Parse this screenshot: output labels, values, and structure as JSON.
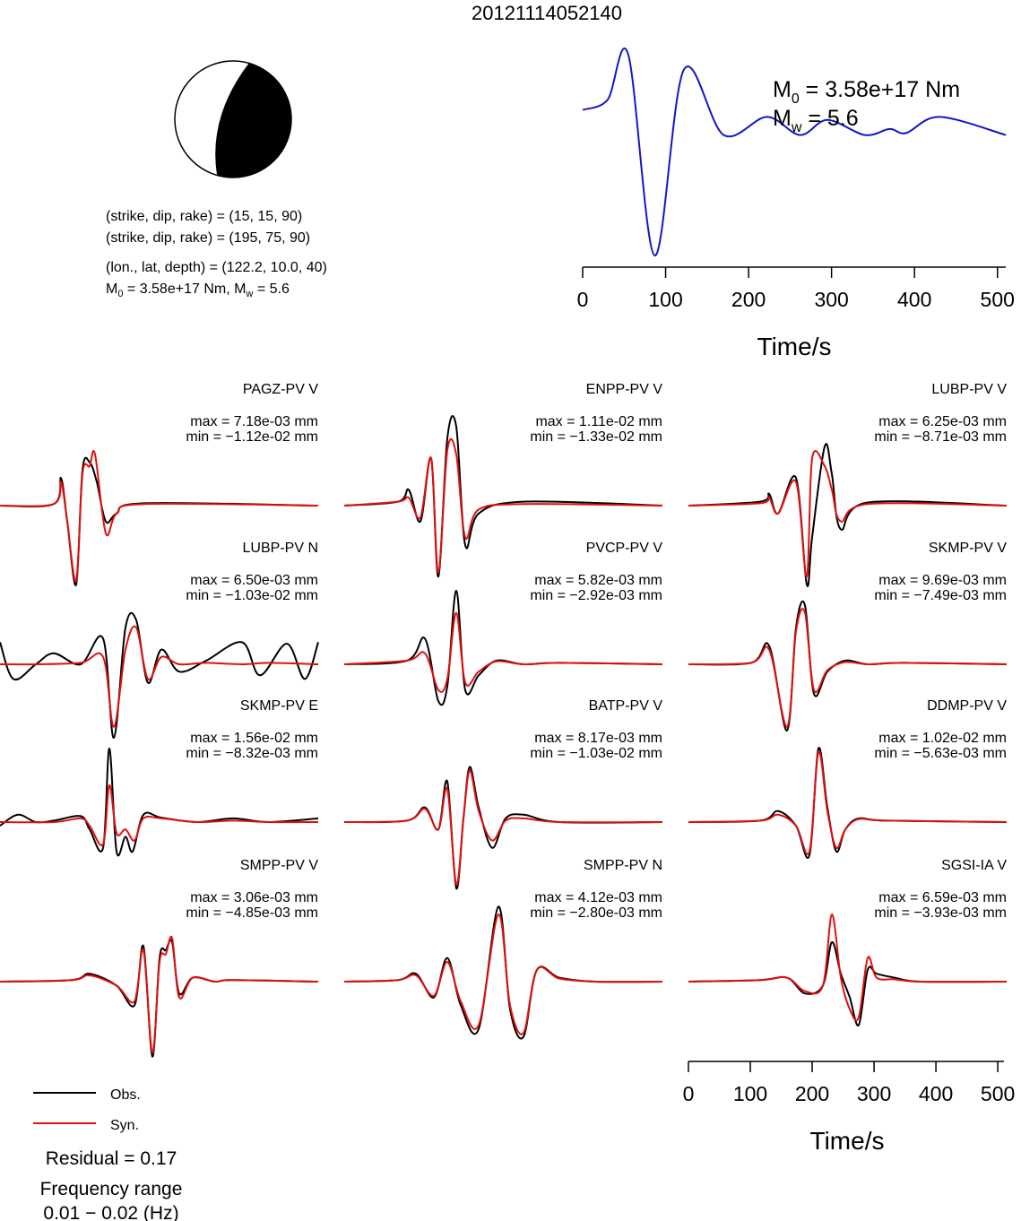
{
  "title": "20121114052140",
  "mechanism": {
    "nodal_plane_1": "(strike, dip, rake) = (15, 15, 90)",
    "nodal_plane_2": "(strike, dip, rake) = (195, 75, 90)",
    "location": "(lon., lat, depth) = (122.2, 10.0, 40)",
    "moment_line": {
      "m0_sym": "M",
      "m0_sub": "0",
      "m0_text": " = 3.58e+17 Nm, ",
      "mw_sym": "M",
      "mw_sub": "w",
      "mw_text": " = 5.6"
    }
  },
  "stf": {
    "m0": {
      "sym": "M",
      "sub": "0",
      "text": " = 3.58e+17 Nm"
    },
    "mw": {
      "sym": "M",
      "sub": "w",
      "text": " = 5.6"
    },
    "xlabel": "Time/s",
    "ticks": [
      "0",
      "100",
      "200",
      "300",
      "400",
      "500"
    ]
  },
  "bottom_axis": {
    "xlabel": "Time/s",
    "ticks": [
      "0",
      "100",
      "200",
      "300",
      "400",
      "500"
    ]
  },
  "legend": {
    "obs": "Obs.",
    "syn": "Syn.",
    "obs_color": "#000000",
    "syn_color": "#e01010"
  },
  "residual": "Residual = 0.17",
  "frequency_label": "Frequency range",
  "frequency_value": "0.01 − 0.02 (Hz)",
  "colors": {
    "stf": "#1515c8",
    "obs": "#000000",
    "syn": "#e01010"
  },
  "chart_data": {
    "type": "line",
    "stf": {
      "x_range": [
        0,
        510
      ],
      "x": [
        0,
        30,
        55,
        87,
        122,
        170,
        222,
        262,
        295,
        340,
        370,
        390,
        430,
        510
      ],
      "y": [
        0.45,
        0.55,
        1.0,
        -1.0,
        0.85,
        0.2,
        0.38,
        0.2,
        0.35,
        0.2,
        0.26,
        0.22,
        0.38,
        0.2
      ]
    },
    "stations": [
      {
        "name": "PAGZ-PV V",
        "max": "max = 7.18e-03 mm",
        "min": "min = −1.12e-02 mm"
      },
      {
        "name": "ENPP-PV V",
        "max": "max = 1.11e-02 mm",
        "min": "min = −1.33e-02 mm"
      },
      {
        "name": "LUBP-PV V",
        "max": "max = 6.25e-03 mm",
        "min": "min = −8.71e-03 mm"
      },
      {
        "name": "LUBP-PV N",
        "max": "max = 6.50e-03 mm",
        "min": "min = −1.03e-02 mm"
      },
      {
        "name": "PVCP-PV V",
        "max": "max = 5.82e-03 mm",
        "min": "min = −2.92e-03 mm"
      },
      {
        "name": "SKMP-PV V",
        "max": "max = 9.69e-03 mm",
        "min": "min = −7.49e-03 mm"
      },
      {
        "name": "SKMP-PV E",
        "max": "max = 1.56e-02 mm",
        "min": "min = −8.32e-03 mm"
      },
      {
        "name": "BATP-PV V",
        "max": "max = 8.17e-03 mm",
        "min": "min = −1.03e-02 mm"
      },
      {
        "name": "DDMP-PV V",
        "max": "max = 1.02e-02 mm",
        "min": "min = −5.63e-03 mm"
      },
      {
        "name": "SMPP-PV V",
        "max": "max = 3.06e-03 mm",
        "min": "min = −4.85e-03 mm"
      },
      {
        "name": "SMPP-PV N",
        "max": "max = 4.12e-03 mm",
        "min": "min = −2.80e-03 mm"
      },
      {
        "name": "SGSI-IA V",
        "max": "max = 6.59e-03 mm",
        "min": "min = −3.93e-03 mm"
      }
    ],
    "waveforms": [
      {
        "obs": {
          "x": [
            0,
            60,
            68,
            75,
            85,
            92,
            100,
            108,
            118,
            130,
            160,
            355
          ],
          "y": [
            0,
            0.02,
            0.35,
            -0.2,
            -1.0,
            0.45,
            0.55,
            0.3,
            -0.2,
            -0.1,
            0.03,
            0
          ]
        },
        "syn": {
          "x": [
            0,
            60,
            68,
            75,
            85,
            92,
            100,
            106,
            118,
            130,
            160,
            355
          ],
          "y": [
            0,
            0.02,
            0.3,
            -0.2,
            -0.95,
            0.4,
            0.5,
            0.65,
            -0.35,
            -0.1,
            0.02,
            0
          ]
        }
      },
      {
        "obs": {
          "x": [
            0,
            60,
            72,
            85,
            97,
            105,
            115,
            125,
            135,
            150,
            200,
            355
          ],
          "y": [
            0,
            0.05,
            0.2,
            -0.2,
            0.6,
            -0.9,
            0.85,
            1.0,
            -0.5,
            -0.1,
            0.05,
            0
          ]
        },
        "syn": {
          "x": [
            0,
            60,
            72,
            85,
            97,
            105,
            115,
            125,
            135,
            150,
            200,
            355
          ],
          "y": [
            0,
            0.05,
            0.1,
            -0.15,
            0.6,
            -0.85,
            0.7,
            0.65,
            -0.4,
            -0.05,
            0.02,
            0
          ]
        }
      },
      {
        "obs": {
          "x": [
            0,
            80,
            90,
            100,
            120,
            132,
            138,
            152,
            160,
            170,
            200,
            355
          ],
          "y": [
            0,
            0.05,
            0.15,
            -0.1,
            0.35,
            -1.0,
            -0.4,
            0.75,
            0.4,
            -0.3,
            0.04,
            0
          ]
        },
        "syn": {
          "x": [
            0,
            80,
            90,
            100,
            120,
            132,
            138,
            152,
            160,
            170,
            200,
            355
          ],
          "y": [
            0,
            0.03,
            0.1,
            -0.1,
            0.3,
            -0.9,
            0.6,
            0.5,
            0.2,
            -0.2,
            0.02,
            0
          ]
        }
      },
      {
        "obs": {
          "x": [
            0,
            15,
            40,
            60,
            90,
            115,
            127,
            140,
            152,
            165,
            180,
            200,
            230,
            270,
            290,
            320,
            340,
            355
          ],
          "y": [
            0.3,
            -0.2,
            0,
            0.15,
            0,
            0.35,
            -1.0,
            0.5,
            0.6,
            -0.25,
            0.2,
            -0.1,
            0.05,
            0.3,
            -0.15,
            0.28,
            -0.2,
            0.3
          ]
        },
        "syn": {
          "x": [
            0,
            40,
            90,
            115,
            127,
            140,
            152,
            165,
            180,
            200,
            230,
            270,
            300,
            355
          ],
          "y": [
            0,
            0,
            0.02,
            0.1,
            -0.85,
            0.2,
            0.5,
            -0.2,
            0.1,
            0,
            0.02,
            0,
            0.02,
            0
          ]
        }
      },
      {
        "obs": {
          "x": [
            0,
            70,
            90,
            105,
            115,
            125,
            135,
            150,
            170,
            200,
            240,
            355
          ],
          "y": [
            0,
            0.05,
            0.35,
            -0.5,
            -0.3,
            1.0,
            -0.35,
            -0.15,
            0.05,
            0,
            0.02,
            0
          ]
        },
        "syn": {
          "x": [
            0,
            70,
            90,
            105,
            115,
            125,
            135,
            150,
            170,
            200,
            240,
            355
          ],
          "y": [
            0,
            0.05,
            0.15,
            -0.35,
            -0.2,
            0.7,
            -0.25,
            -0.1,
            0.04,
            0,
            0.02,
            0
          ]
        }
      },
      {
        "obs": {
          "x": [
            0,
            70,
            90,
            110,
            120,
            130,
            140,
            155,
            175,
            200,
            240,
            355
          ],
          "y": [
            0,
            0.02,
            0.25,
            -0.9,
            0.5,
            0.8,
            -0.4,
            -0.1,
            0.05,
            0,
            0.02,
            0
          ]
        },
        "syn": {
          "x": [
            0,
            70,
            90,
            110,
            120,
            130,
            140,
            155,
            175,
            200,
            240,
            355
          ],
          "y": [
            0,
            0.02,
            0.2,
            -0.85,
            0.45,
            0.7,
            -0.35,
            -0.08,
            0.03,
            0,
            0.02,
            0
          ]
        }
      },
      {
        "obs": {
          "x": [
            0,
            20,
            40,
            60,
            90,
            100,
            115,
            122,
            130,
            140,
            148,
            160,
            180,
            220,
            260,
            300,
            355
          ],
          "y": [
            -0.05,
            0.1,
            0,
            0.02,
            0.08,
            -0.1,
            -0.35,
            1.0,
            -0.4,
            -0.2,
            -0.4,
            0.1,
            0.06,
            0,
            0.05,
            0,
            0.05
          ]
        },
        "syn": {
          "x": [
            0,
            60,
            90,
            100,
            115,
            122,
            130,
            140,
            150,
            160,
            180,
            220,
            260,
            300,
            355
          ],
          "y": [
            0,
            0,
            0.05,
            -0.05,
            -0.3,
            0.5,
            -0.15,
            -0.1,
            -0.25,
            0.05,
            0.05,
            0,
            0.02,
            0,
            0
          ]
        }
      },
      {
        "obs": {
          "x": [
            0,
            70,
            90,
            105,
            115,
            125,
            133,
            140,
            150,
            165,
            180,
            200,
            240,
            355
          ],
          "y": [
            0,
            0.02,
            0.2,
            -0.1,
            0.55,
            -0.9,
            0.05,
            0.75,
            0.2,
            -0.35,
            0.05,
            0.1,
            0,
            0
          ]
        },
        "syn": {
          "x": [
            0,
            70,
            90,
            105,
            115,
            125,
            133,
            140,
            150,
            165,
            180,
            200,
            240,
            355
          ],
          "y": [
            0,
            0.02,
            0.18,
            -0.1,
            0.45,
            -0.85,
            0.05,
            0.7,
            0.15,
            -0.25,
            0.02,
            0.05,
            0,
            0
          ]
        }
      },
      {
        "obs": {
          "x": [
            0,
            80,
            100,
            120,
            135,
            145,
            155,
            165,
            175,
            190,
            220,
            355
          ],
          "y": [
            0,
            0.02,
            0.15,
            -0.05,
            -0.45,
            1.0,
            0.2,
            -0.4,
            -0.1,
            0.05,
            0.02,
            0
          ]
        },
        "syn": {
          "x": [
            0,
            80,
            100,
            120,
            135,
            145,
            155,
            165,
            175,
            190,
            220,
            355
          ],
          "y": [
            0,
            0.02,
            0.1,
            -0.05,
            -0.4,
            0.95,
            0.15,
            -0.35,
            -0.1,
            0.04,
            0.02,
            0
          ]
        }
      },
      {
        "obs": {
          "x": [
            0,
            80,
            100,
            130,
            150,
            160,
            170,
            178,
            185,
            192,
            200,
            215,
            240,
            260,
            355
          ],
          "y": [
            0,
            0.02,
            0.1,
            -0.05,
            -0.3,
            0.45,
            -0.95,
            0.3,
            0.4,
            0.5,
            -0.15,
            0.05,
            0,
            0.02,
            0
          ]
        },
        "syn": {
          "x": [
            0,
            80,
            100,
            130,
            150,
            160,
            170,
            178,
            185,
            192,
            200,
            215,
            240,
            260,
            355
          ],
          "y": [
            0,
            0.02,
            0.08,
            -0.05,
            -0.25,
            0.4,
            -0.9,
            0.25,
            0.35,
            0.55,
            -0.2,
            0.05,
            0,
            0.02,
            0
          ]
        }
      },
      {
        "obs": {
          "x": [
            0,
            60,
            80,
            100,
            115,
            130,
            150,
            172,
            185,
            200,
            215,
            240,
            280,
            355
          ],
          "y": [
            0,
            0.02,
            0.1,
            -0.2,
            0.3,
            -0.3,
            -0.6,
            0.95,
            -0.35,
            -0.7,
            0.15,
            0.05,
            0,
            0
          ]
        },
        "syn": {
          "x": [
            0,
            60,
            80,
            100,
            115,
            130,
            150,
            172,
            185,
            200,
            215,
            240,
            280,
            355
          ],
          "y": [
            0,
            0.02,
            0.08,
            -0.18,
            0.25,
            -0.25,
            -0.55,
            0.85,
            -0.3,
            -0.65,
            0.15,
            0.04,
            0,
            0
          ]
        }
      },
      {
        "obs": {
          "x": [
            0,
            80,
            110,
            130,
            150,
            160,
            170,
            180,
            190,
            200,
            210,
            230,
            260,
            355
          ],
          "y": [
            0,
            0.02,
            0.05,
            -0.15,
            -0.05,
            0.5,
            0.1,
            -0.2,
            -0.55,
            0.15,
            0.1,
            0.05,
            0,
            0
          ]
        },
        "syn": {
          "x": [
            0,
            80,
            110,
            130,
            150,
            160,
            170,
            180,
            190,
            200,
            210,
            230,
            260,
            355
          ],
          "y": [
            0,
            0.02,
            0.05,
            -0.12,
            -0.05,
            0.85,
            0.05,
            -0.35,
            -0.45,
            0.3,
            0.05,
            0.03,
            0,
            0
          ]
        }
      }
    ]
  }
}
